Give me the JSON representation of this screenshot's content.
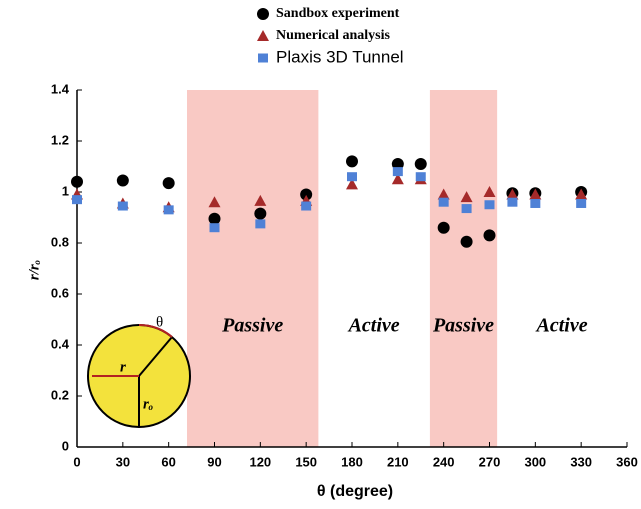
{
  "chart_data": {
    "type": "scatter",
    "x": [
      0,
      30,
      60,
      90,
      120,
      150,
      180,
      210,
      225,
      240,
      255,
      270,
      285,
      300,
      330
    ],
    "series": [
      {
        "name": "Sandbox experiment",
        "color": "#000000",
        "marker": "circle",
        "values": [
          1.04,
          1.045,
          1.035,
          0.895,
          0.915,
          0.99,
          1.12,
          1.11,
          1.11,
          0.86,
          0.805,
          0.83,
          0.995,
          0.995,
          1.0
        ]
      },
      {
        "name": "Numerical analysis",
        "color": "#a52a2a",
        "marker": "triangle",
        "values": [
          0.99,
          0.955,
          0.94,
          0.96,
          0.965,
          0.965,
          1.03,
          1.05,
          1.05,
          0.99,
          0.98,
          1.0,
          0.99,
          0.99,
          0.99
        ]
      },
      {
        "name": "Plaxis 3D Tunnel",
        "color": "#4f81d6",
        "marker": "square",
        "values": [
          0.97,
          0.945,
          0.93,
          0.86,
          0.875,
          0.945,
          1.06,
          1.08,
          1.06,
          0.96,
          0.935,
          0.95,
          0.96,
          0.955,
          0.955
        ]
      }
    ],
    "xlabel": "θ  (degree)",
    "ylabel": "r/rₒ",
    "xlim": [
      0,
      360
    ],
    "xticks": [
      0,
      30,
      60,
      90,
      120,
      150,
      180,
      210,
      240,
      270,
      300,
      330,
      360
    ],
    "ylim": [
      0,
      1.4
    ],
    "yticks": [
      0,
      0.2,
      0.4,
      0.6,
      0.8,
      1,
      1.2,
      1.4
    ],
    "zones": [
      {
        "label": "Passive",
        "range": [
          72,
          158
        ],
        "shaded": true
      },
      {
        "label": "Active",
        "range": [
          158,
          231
        ],
        "shaded": false
      },
      {
        "label": "Passive",
        "range": [
          231,
          275
        ],
        "shaded": true
      },
      {
        "label": "Active",
        "range": [
          275,
          360
        ],
        "shaded": false
      }
    ],
    "zone_color": "#f9c9c4",
    "inset_labels": [
      "θ",
      "r",
      "rₒ"
    ]
  }
}
